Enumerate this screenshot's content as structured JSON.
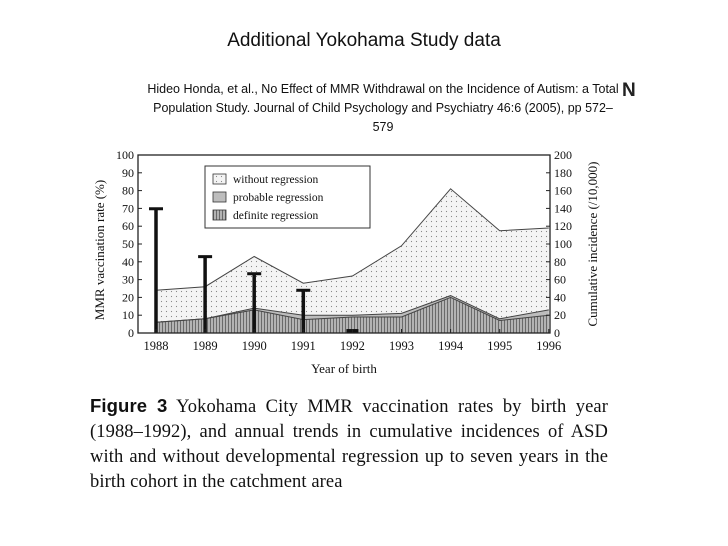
{
  "title": "Additional Yokohama Study data",
  "citation": "Hideo Honda, et al., No Effect of MMR Withdrawal on the Incidence of Autism: a Total Population Study.  Journal of Child Psychology and Psychiatry 46:6 (2005), pp 572–579",
  "cut_glyph": "N",
  "caption": {
    "label": "Figure 3",
    "text": " Yokohama City MMR vaccination rates by birth year (1988–1992), and annual trends in cumulative incidences of ASD with and without developmental regression up to seven years in the birth cohort in the catchment area"
  },
  "chart_data": {
    "type": "area",
    "x": [
      1988,
      1989,
      1990,
      1991,
      1992,
      1993,
      1994,
      1995,
      1996
    ],
    "xlabel": "Year of birth",
    "ylabel_left": "MMR vaccination rate (%)",
    "ylabel_right": "Cumulative incidence (/10,000)",
    "ylim_left": [
      0,
      100
    ],
    "ylim_right": [
      0,
      200
    ],
    "yticks_left": [
      0,
      10,
      20,
      30,
      40,
      50,
      60,
      70,
      80,
      90,
      100
    ],
    "yticks_right": [
      0,
      20,
      40,
      60,
      80,
      100,
      120,
      140,
      160,
      180,
      200
    ],
    "xticks": [
      "1988",
      "1989",
      "1990",
      "1991",
      "1992",
      "1993",
      "1994",
      "1995",
      "1996"
    ],
    "legend_position": "top-left",
    "bars": {
      "name": "MMR vaccination rate",
      "axis": "left",
      "x": [
        1988,
        1989,
        1990,
        1991,
        1992
      ],
      "values": [
        69.8,
        42.9,
        33.3,
        24.0,
        1.1
      ]
    },
    "series": [
      {
        "name": "definite regression",
        "axis": "right",
        "values": [
          12,
          16,
          26,
          15,
          18,
          18,
          40,
          14,
          20
        ],
        "fill": "#a8a8a8",
        "pattern": "vlines"
      },
      {
        "name": "probable regression",
        "axis": "right",
        "values": [
          12,
          16,
          28,
          20,
          20,
          22,
          42,
          16,
          26
        ],
        "fill": "#bdbdbd",
        "pattern": "none"
      },
      {
        "name": "without regression",
        "axis": "right",
        "values": [
          48,
          52,
          86,
          56,
          64,
          98,
          162,
          115,
          118
        ],
        "fill": "#f2f2f2",
        "pattern": "dots"
      }
    ]
  }
}
